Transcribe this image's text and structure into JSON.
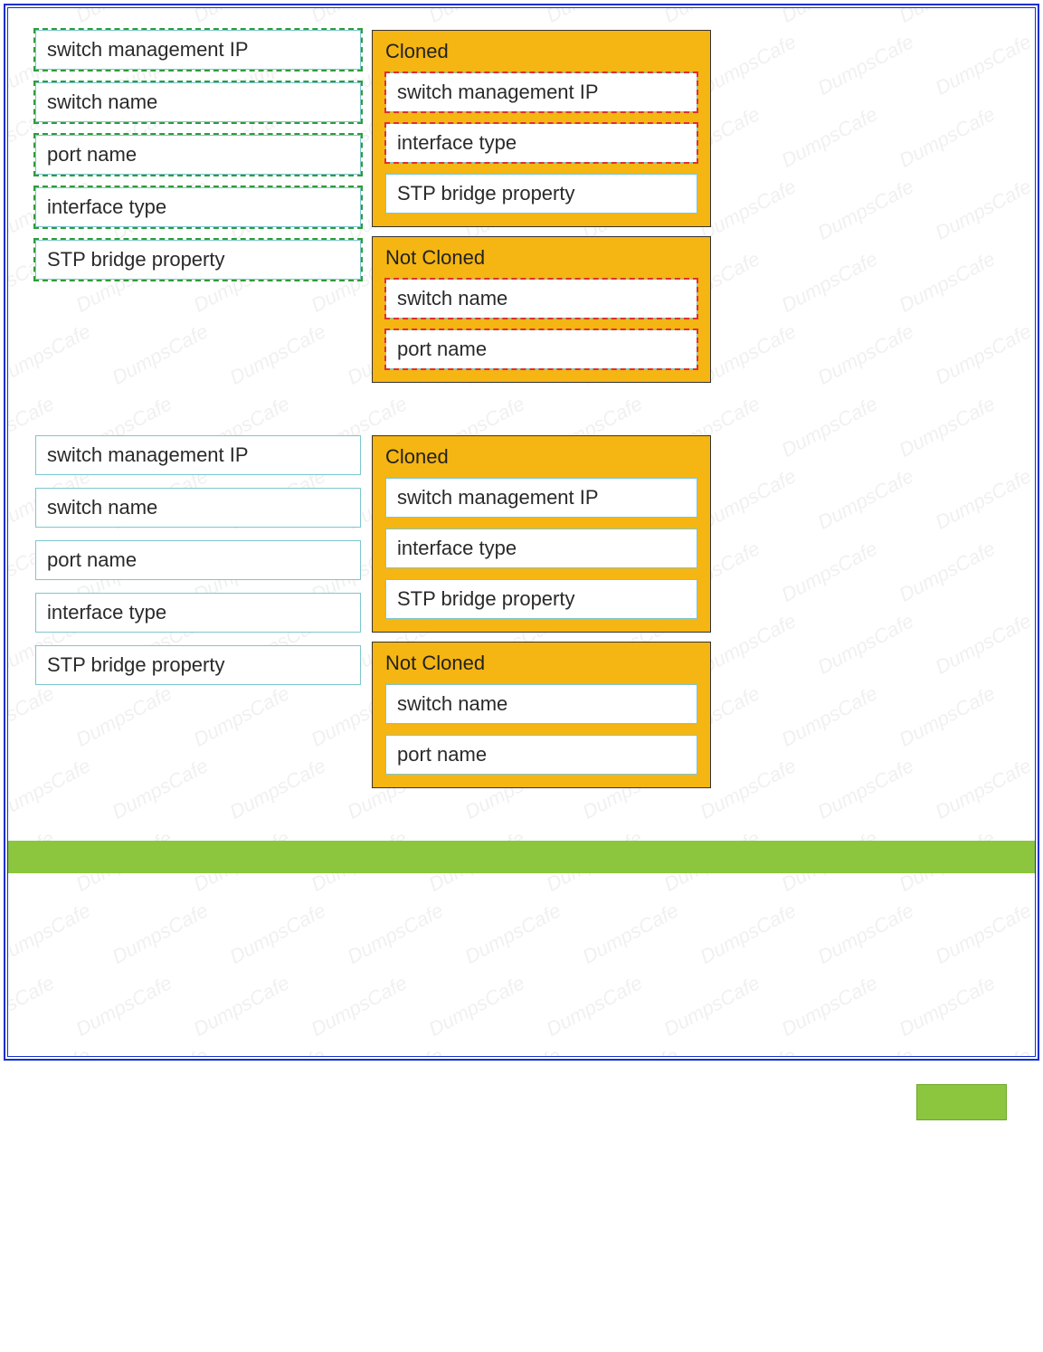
{
  "watermark_text": "DumpsCafe",
  "colors": {
    "page_border": "#1030d0",
    "dropzone_bg": "#f5b512",
    "dropzone_border": "#333333",
    "item_border": "#7cc6cf",
    "item_bg": "#ffffff",
    "green_dash": "#2e9c3a",
    "red_dash": "#e03030",
    "green_bar": "#8cc63e",
    "text": "#2a2a2a"
  },
  "sections": [
    {
      "source_dashed": true,
      "source_items": [
        "switch management IP",
        "switch name",
        "port name",
        "interface type",
        "STP bridge property"
      ],
      "targets": [
        {
          "title": "Cloned",
          "items": [
            {
              "label": "switch management IP",
              "dashed_red": true
            },
            {
              "label": "interface type",
              "dashed_red": true
            },
            {
              "label": "STP bridge property",
              "dashed_red": false
            }
          ]
        },
        {
          "title": "Not Cloned",
          "items": [
            {
              "label": "switch name",
              "dashed_red": true
            },
            {
              "label": "port name",
              "dashed_red": true
            }
          ]
        }
      ]
    },
    {
      "source_dashed": false,
      "source_items": [
        "switch management IP",
        "switch name",
        "port name",
        "interface type",
        "STP bridge property"
      ],
      "targets": [
        {
          "title": "Cloned",
          "items": [
            {
              "label": "switch management IP",
              "dashed_red": false
            },
            {
              "label": "interface type",
              "dashed_red": false
            },
            {
              "label": "STP bridge property",
              "dashed_red": false
            }
          ]
        },
        {
          "title": "Not Cloned",
          "items": [
            {
              "label": "switch name",
              "dashed_red": false
            },
            {
              "label": "port name",
              "dashed_red": false
            }
          ]
        }
      ]
    }
  ]
}
